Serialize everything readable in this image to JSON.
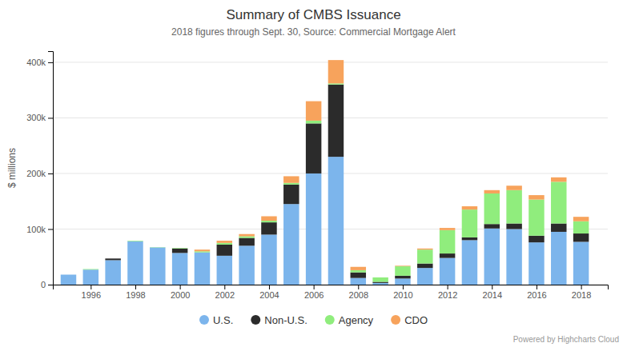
{
  "chart_data": {
    "type": "bar",
    "stacked": true,
    "title": "Summary of CMBS Issuance",
    "subtitle": "2018 figures through Sept. 30, Source: Commercial Mortgage Alert",
    "y_label": "$ millions",
    "annotations": [
      "Powered by Highcharts Cloud"
    ],
    "x": [
      1995,
      1996,
      1997,
      1998,
      1999,
      2000,
      2001,
      2002,
      2003,
      2004,
      2005,
      2006,
      2007,
      2008,
      2009,
      2010,
      2011,
      2012,
      2013,
      2014,
      2015,
      2016,
      2017,
      2018
    ],
    "xlim": [
      1994.3,
      2019.2
    ],
    "xticks": [
      1996,
      1998,
      2000,
      2002,
      2004,
      2006,
      2008,
      2010,
      2012,
      2014,
      2016,
      2018
    ],
    "ylim": [
      0,
      420000
    ],
    "yticks": [
      0,
      {
        "value": 100000,
        "label": "100k"
      },
      {
        "value": 200000,
        "label": "200k"
      },
      {
        "value": 300000,
        "label": "300k"
      },
      {
        "value": 400000,
        "label": "400k"
      }
    ],
    "grid": true,
    "legend": "bottom",
    "series": [
      {
        "name": "U.S.",
        "color": "#7cb5ec",
        "values": [
          18000,
          27000,
          44000,
          78000,
          67000,
          57000,
          58000,
          52000,
          70000,
          90000,
          145000,
          200000,
          230000,
          12000,
          3000,
          11000,
          30000,
          48000,
          80000,
          101000,
          100000,
          76000,
          95000,
          77000
        ]
      },
      {
        "name": "Non-U.S.",
        "color": "#2b2b2b",
        "values": [
          0,
          0,
          3000,
          0,
          0,
          8000,
          0,
          20000,
          14000,
          22000,
          35000,
          90000,
          130000,
          10000,
          2000,
          5000,
          8000,
          8000,
          5000,
          8000,
          10000,
          12000,
          15000,
          15000
        ]
      },
      {
        "name": "Agency",
        "color": "#90ed7d",
        "values": [
          0,
          1000,
          0,
          1000,
          500,
          1000,
          2000,
          3000,
          3000,
          3000,
          3000,
          5000,
          2000,
          4000,
          8000,
          17000,
          25000,
          42000,
          50000,
          55000,
          60000,
          65000,
          75000,
          22000
        ]
      },
      {
        "name": "CDO",
        "color": "#f7a35c",
        "values": [
          0,
          0,
          0,
          0,
          0,
          0,
          3000,
          4000,
          4000,
          8000,
          12000,
          35000,
          42000,
          6000,
          0,
          1000,
          2000,
          4000,
          6000,
          6000,
          8000,
          8000,
          8000,
          8000
        ]
      }
    ]
  }
}
